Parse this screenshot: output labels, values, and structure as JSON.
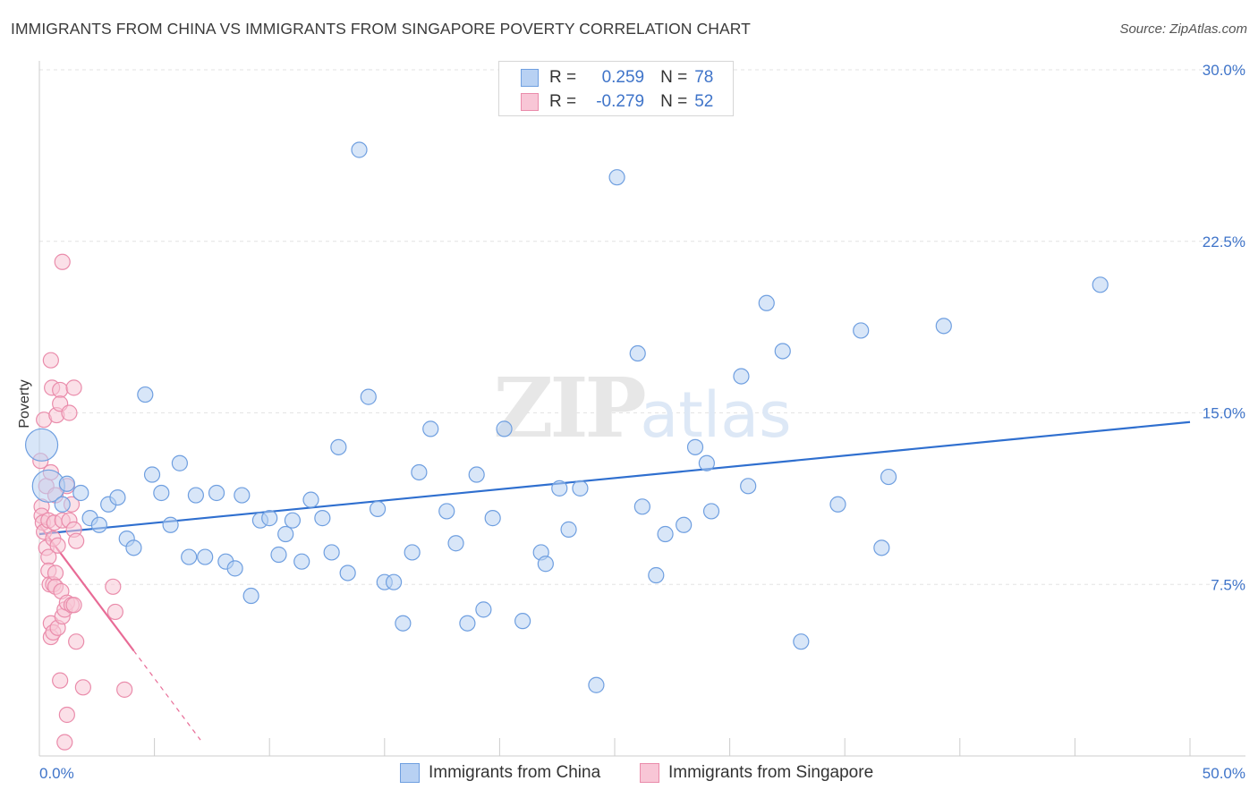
{
  "header": {
    "title": "IMMIGRANTS FROM CHINA VS IMMIGRANTS FROM SINGAPORE POVERTY CORRELATION CHART",
    "source": "Source: ZipAtlas.com"
  },
  "watermark": {
    "zip": "ZIP",
    "atlas": "atlas"
  },
  "stats_legend": {
    "r_label": "R =",
    "n_label": "N =",
    "rows": [
      {
        "r": "0.259",
        "n": "78"
      },
      {
        "r": "-0.279",
        "n": "52"
      }
    ]
  },
  "bottom_legend": {
    "china": "Immigrants from China",
    "singapore": "Immigrants from Singapore"
  },
  "colors": {
    "china_fill": "#b8d1f3",
    "china_stroke": "#6f9fe0",
    "china_line": "#2f6fcf",
    "singapore_fill": "#f8c6d6",
    "singapore_stroke": "#ea8cab",
    "singapore_line": "#e86b96",
    "tick_text": "#3f74c9"
  },
  "chart_data": {
    "type": "scatter",
    "title": "IMMIGRANTS FROM CHINA VS IMMIGRANTS FROM SINGAPORE POVERTY CORRELATION CHART",
    "xlabel": "",
    "ylabel": "Poverty",
    "xlim": [
      0,
      50
    ],
    "ylim": [
      0,
      30
    ],
    "x_tick_labels": [
      "0.0%",
      "50.0%"
    ],
    "y_ticks": [
      7.5,
      15,
      22.5,
      30
    ],
    "y_tick_labels": [
      "7.5%",
      "15.0%",
      "22.5%",
      "30.0%"
    ],
    "grid": true,
    "series": [
      {
        "name": "Immigrants from China",
        "r": 0.259,
        "n": 78,
        "trend": {
          "x": [
            0,
            50
          ],
          "y": [
            9.7,
            14.6
          ]
        },
        "points": [
          {
            "x": 0.1,
            "y": 13.6,
            "big": true
          },
          {
            "x": 0.4,
            "y": 11.8,
            "big": true
          },
          {
            "x": 1.0,
            "y": 11.0
          },
          {
            "x": 1.2,
            "y": 11.9
          },
          {
            "x": 1.8,
            "y": 11.5
          },
          {
            "x": 2.2,
            "y": 10.4
          },
          {
            "x": 2.6,
            "y": 10.1
          },
          {
            "x": 3.0,
            "y": 11.0
          },
          {
            "x": 3.4,
            "y": 11.3
          },
          {
            "x": 3.8,
            "y": 9.5
          },
          {
            "x": 4.1,
            "y": 9.1
          },
          {
            "x": 4.6,
            "y": 15.8
          },
          {
            "x": 4.9,
            "y": 12.3
          },
          {
            "x": 5.3,
            "y": 11.5
          },
          {
            "x": 5.7,
            "y": 10.1
          },
          {
            "x": 6.1,
            "y": 12.8
          },
          {
            "x": 6.5,
            "y": 8.7
          },
          {
            "x": 6.8,
            "y": 11.4
          },
          {
            "x": 7.2,
            "y": 8.7
          },
          {
            "x": 7.7,
            "y": 11.5
          },
          {
            "x": 8.1,
            "y": 8.5
          },
          {
            "x": 8.5,
            "y": 8.2
          },
          {
            "x": 8.8,
            "y": 11.4
          },
          {
            "x": 9.2,
            "y": 7.0
          },
          {
            "x": 9.6,
            "y": 10.3
          },
          {
            "x": 10.0,
            "y": 10.4
          },
          {
            "x": 10.4,
            "y": 8.8
          },
          {
            "x": 10.7,
            "y": 9.7
          },
          {
            "x": 11.0,
            "y": 10.3
          },
          {
            "x": 11.4,
            "y": 8.5
          },
          {
            "x": 11.8,
            "y": 11.2
          },
          {
            "x": 12.3,
            "y": 10.4
          },
          {
            "x": 12.7,
            "y": 8.9
          },
          {
            "x": 13.0,
            "y": 13.5
          },
          {
            "x": 13.4,
            "y": 8.0
          },
          {
            "x": 13.9,
            "y": 26.5
          },
          {
            "x": 14.3,
            "y": 15.7
          },
          {
            "x": 14.7,
            "y": 10.8
          },
          {
            "x": 15.0,
            "y": 7.6
          },
          {
            "x": 15.4,
            "y": 7.6
          },
          {
            "x": 15.8,
            "y": 5.8
          },
          {
            "x": 16.2,
            "y": 8.9
          },
          {
            "x": 16.5,
            "y": 12.4
          },
          {
            "x": 17.0,
            "y": 14.3
          },
          {
            "x": 17.7,
            "y": 10.7
          },
          {
            "x": 18.1,
            "y": 9.3
          },
          {
            "x": 18.6,
            "y": 5.8
          },
          {
            "x": 19.0,
            "y": 12.3
          },
          {
            "x": 19.3,
            "y": 6.4
          },
          {
            "x": 19.7,
            "y": 10.4
          },
          {
            "x": 20.2,
            "y": 14.3
          },
          {
            "x": 21.0,
            "y": 5.9
          },
          {
            "x": 21.8,
            "y": 8.9
          },
          {
            "x": 22.0,
            "y": 8.4
          },
          {
            "x": 22.6,
            "y": 11.7
          },
          {
            "x": 23.0,
            "y": 9.9
          },
          {
            "x": 23.5,
            "y": 11.7
          },
          {
            "x": 24.2,
            "y": 3.1
          },
          {
            "x": 25.1,
            "y": 25.3
          },
          {
            "x": 26.0,
            "y": 17.6
          },
          {
            "x": 26.2,
            "y": 10.9
          },
          {
            "x": 26.8,
            "y": 7.9
          },
          {
            "x": 27.2,
            "y": 9.7
          },
          {
            "x": 28.0,
            "y": 10.1
          },
          {
            "x": 28.5,
            "y": 13.5
          },
          {
            "x": 29.0,
            "y": 12.8
          },
          {
            "x": 29.2,
            "y": 10.7
          },
          {
            "x": 30.5,
            "y": 16.6
          },
          {
            "x": 30.8,
            "y": 11.8
          },
          {
            "x": 31.6,
            "y": 19.8
          },
          {
            "x": 32.3,
            "y": 17.7
          },
          {
            "x": 33.1,
            "y": 5.0
          },
          {
            "x": 34.7,
            "y": 11.0
          },
          {
            "x": 35.7,
            "y": 18.6
          },
          {
            "x": 36.6,
            "y": 9.1
          },
          {
            "x": 36.9,
            "y": 12.2
          },
          {
            "x": 39.3,
            "y": 18.8
          },
          {
            "x": 46.1,
            "y": 20.6
          }
        ]
      },
      {
        "name": "Immigrants from Singapore",
        "r": -0.279,
        "n": 52,
        "trend": {
          "x": [
            0,
            4.1
          ],
          "y": [
            10.1,
            4.6
          ],
          "dashed_extension": {
            "x": [
              4.1,
              7.0
            ],
            "y": [
              4.6,
              0.7
            ]
          }
        },
        "points": [
          {
            "x": 0.05,
            "y": 12.9
          },
          {
            "x": 0.1,
            "y": 10.9
          },
          {
            "x": 0.1,
            "y": 10.5
          },
          {
            "x": 0.15,
            "y": 10.2
          },
          {
            "x": 0.2,
            "y": 9.8
          },
          {
            "x": 0.2,
            "y": 14.7
          },
          {
            "x": 0.3,
            "y": 11.8
          },
          {
            "x": 0.3,
            "y": 9.1
          },
          {
            "x": 0.4,
            "y": 10.3
          },
          {
            "x": 0.4,
            "y": 8.7
          },
          {
            "x": 0.4,
            "y": 8.1
          },
          {
            "x": 0.45,
            "y": 7.5
          },
          {
            "x": 0.5,
            "y": 12.4
          },
          {
            "x": 0.5,
            "y": 5.8
          },
          {
            "x": 0.5,
            "y": 5.2
          },
          {
            "x": 0.5,
            "y": 17.3
          },
          {
            "x": 0.55,
            "y": 16.1
          },
          {
            "x": 0.6,
            "y": 9.5
          },
          {
            "x": 0.6,
            "y": 7.5
          },
          {
            "x": 0.6,
            "y": 5.4
          },
          {
            "x": 0.65,
            "y": 10.2
          },
          {
            "x": 0.7,
            "y": 8.0
          },
          {
            "x": 0.7,
            "y": 7.4
          },
          {
            "x": 0.7,
            "y": 11.4
          },
          {
            "x": 0.75,
            "y": 14.9
          },
          {
            "x": 0.8,
            "y": 9.2
          },
          {
            "x": 0.8,
            "y": 5.6
          },
          {
            "x": 0.9,
            "y": 16.0
          },
          {
            "x": 0.9,
            "y": 15.4
          },
          {
            "x": 0.9,
            "y": 3.3
          },
          {
            "x": 0.95,
            "y": 7.2
          },
          {
            "x": 1.0,
            "y": 6.1
          },
          {
            "x": 1.0,
            "y": 10.3
          },
          {
            "x": 1.0,
            "y": 21.6
          },
          {
            "x": 1.1,
            "y": 6.4
          },
          {
            "x": 1.1,
            "y": 0.6
          },
          {
            "x": 1.2,
            "y": 1.8
          },
          {
            "x": 1.2,
            "y": 11.8
          },
          {
            "x": 1.2,
            "y": 6.7
          },
          {
            "x": 1.3,
            "y": 10.3
          },
          {
            "x": 1.3,
            "y": 15.0
          },
          {
            "x": 1.4,
            "y": 6.6
          },
          {
            "x": 1.4,
            "y": 11.0
          },
          {
            "x": 1.5,
            "y": 6.6
          },
          {
            "x": 1.5,
            "y": 9.9
          },
          {
            "x": 1.5,
            "y": 16.1
          },
          {
            "x": 1.6,
            "y": 9.4
          },
          {
            "x": 1.6,
            "y": 5.0
          },
          {
            "x": 1.9,
            "y": 3.0
          },
          {
            "x": 3.2,
            "y": 7.4
          },
          {
            "x": 3.3,
            "y": 6.3
          },
          {
            "x": 3.7,
            "y": 2.9
          }
        ]
      }
    ]
  }
}
